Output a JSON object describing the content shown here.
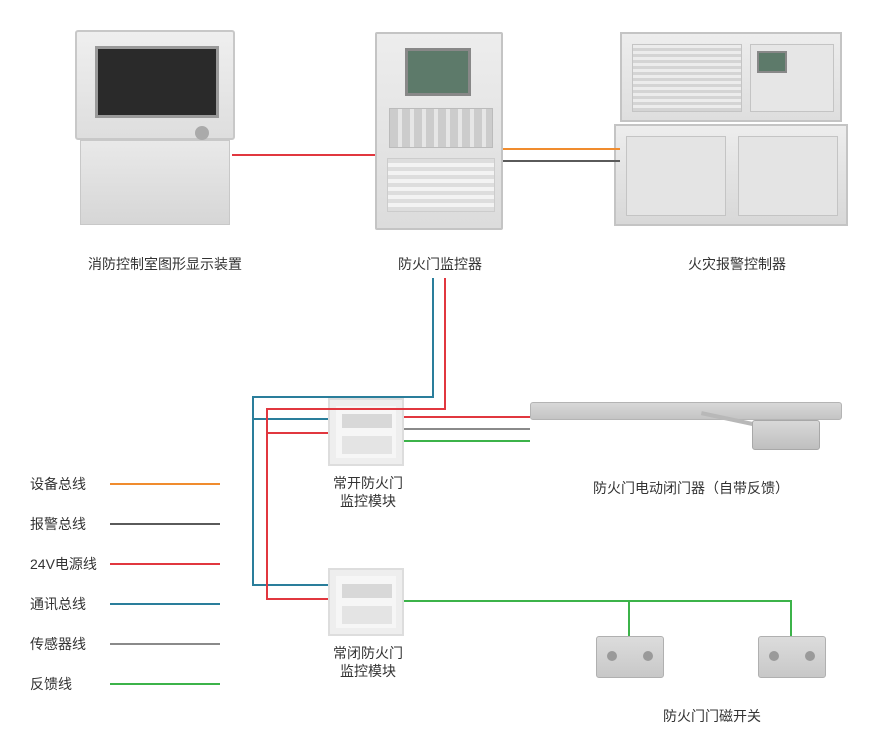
{
  "labels": {
    "console": "消防控制室图形显示装置",
    "panel": "防火门监控器",
    "cabinet": "火灾报警控制器",
    "module_open_l1": "常开防火门",
    "module_open_l2": "监控模块",
    "module_closed_l1": "常闭防火门",
    "module_closed_l2": "监控模块",
    "closer": "防火门电动闭门器（自带反馈）",
    "magnet": "防火门门磁开关"
  },
  "legend": [
    {
      "label": "设备总线",
      "color": "#f08c2e"
    },
    {
      "label": "报警总线",
      "color": "#5a5a5a"
    },
    {
      "label": "24V电源线",
      "color": "#e1373f"
    },
    {
      "label": "通讯总线",
      "color": "#2a7e9b"
    },
    {
      "label": "传感器线",
      "color": "#8a8a8a"
    },
    {
      "label": "反馈线",
      "color": "#3cb34a"
    }
  ],
  "wires": {
    "comm_color": "#2a7e9b",
    "power_color": "#e1373f",
    "dev_color": "#f08c2e",
    "alarm_color": "#5a5a5a",
    "sensor_color": "#8a8a8a",
    "feedback_color": "#3cb34a"
  },
  "positions": {
    "legend_top_start": 474,
    "legend_row_gap": 40
  }
}
